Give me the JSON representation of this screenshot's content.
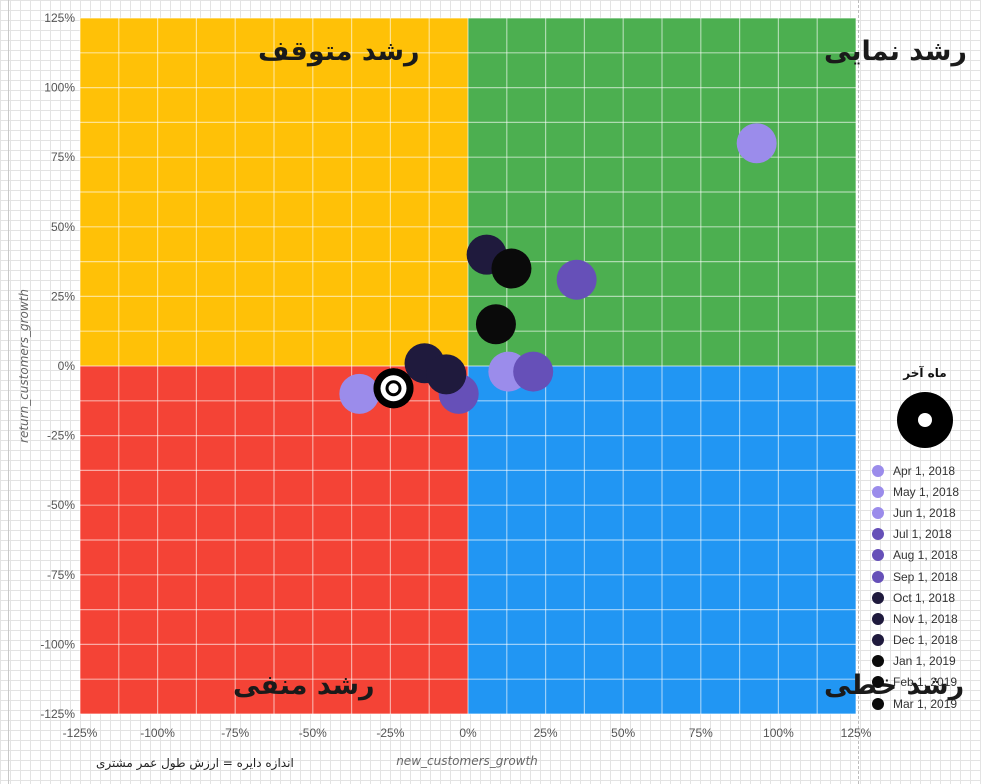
{
  "chart_data": {
    "type": "scatter",
    "title": "",
    "xlabel": "new_customers_growth",
    "ylabel": "return_customers_growth",
    "xlim": [
      -125,
      125
    ],
    "ylim": [
      -125,
      125
    ],
    "x_ticks": [
      "-125%",
      "-100%",
      "-75%",
      "-50%",
      "-25%",
      "0%",
      "25%",
      "50%",
      "75%",
      "100%",
      "125%"
    ],
    "y_ticks": [
      "125%",
      "100%",
      "75%",
      "50%",
      "25%",
      "0%",
      "-25%",
      "-50%",
      "-75%",
      "-100%",
      "-125%"
    ],
    "grid": true,
    "quadrants": [
      {
        "name": "رشد متوقف",
        "color": "#FFC107",
        "position": "top-left"
      },
      {
        "name": "رشد نمایی",
        "color": "#4CAF50",
        "position": "top-right"
      },
      {
        "name": "رشد منفی",
        "color": "#F44336",
        "position": "bottom-left"
      },
      {
        "name": "رشد خطی",
        "color": "#2196F3",
        "position": "bottom-right"
      }
    ],
    "points": [
      {
        "x": 93,
        "y": 80,
        "series": "Apr 1, 2018",
        "color": "#9B8CEB"
      },
      {
        "x": -35,
        "y": -10,
        "series": "May 1, 2018",
        "color": "#9B8CEB"
      },
      {
        "x": 13,
        "y": -2,
        "series": "Jun 1, 2018",
        "color": "#9B8CEB"
      },
      {
        "x": 35,
        "y": 31,
        "series": "Jul 1, 2018",
        "color": "#6650B8"
      },
      {
        "x": 21,
        "y": -2,
        "series": "Aug 1, 2018",
        "color": "#6650B8"
      },
      {
        "x": -3,
        "y": -10,
        "series": "Sep 1, 2018",
        "color": "#6650B8"
      },
      {
        "x": 6,
        "y": 40,
        "series": "Oct 1, 2018",
        "color": "#1F1A3D"
      },
      {
        "x": -14,
        "y": 1,
        "series": "Nov 1, 2018",
        "color": "#1F1A3D"
      },
      {
        "x": -7,
        "y": -3,
        "series": "Dec 1, 2018",
        "color": "#1F1A3D"
      },
      {
        "x": 9,
        "y": 15,
        "series": "Jan 1, 2019",
        "color": "#0A0A0A"
      },
      {
        "x": 14,
        "y": 35,
        "series": "Feb 1, 2019",
        "color": "#0A0A0A"
      },
      {
        "x": -24,
        "y": -8,
        "series": "Mar 1, 2019",
        "color": "#0A0A0A",
        "latest": true
      }
    ],
    "legend": {
      "position": "right",
      "items": [
        {
          "label": "Apr 1, 2018",
          "color": "#9B8CEB"
        },
        {
          "label": "May 1, 2018",
          "color": "#9B8CEB"
        },
        {
          "label": "Jun 1, 2018",
          "color": "#9B8CEB"
        },
        {
          "label": "Jul 1, 2018",
          "color": "#6650B8"
        },
        {
          "label": "Aug 1, 2018",
          "color": "#6650B8"
        },
        {
          "label": "Sep 1, 2018",
          "color": "#6650B8"
        },
        {
          "label": "Oct 1, 2018",
          "color": "#1F1A3D"
        },
        {
          "label": "Nov 1, 2018",
          "color": "#1F1A3D"
        },
        {
          "label": "Dec 1, 2018",
          "color": "#1F1A3D"
        },
        {
          "label": "Jan 1, 2019",
          "color": "#0A0A0A"
        },
        {
          "label": "Feb 1, 2019",
          "color": "#0A0A0A"
        },
        {
          "label": "Mar 1, 2019",
          "color": "#0A0A0A"
        }
      ]
    },
    "size_legend_title": "ماه آخر",
    "size_note": "اندازه دایره = ارزش طول عمر مشتری"
  }
}
